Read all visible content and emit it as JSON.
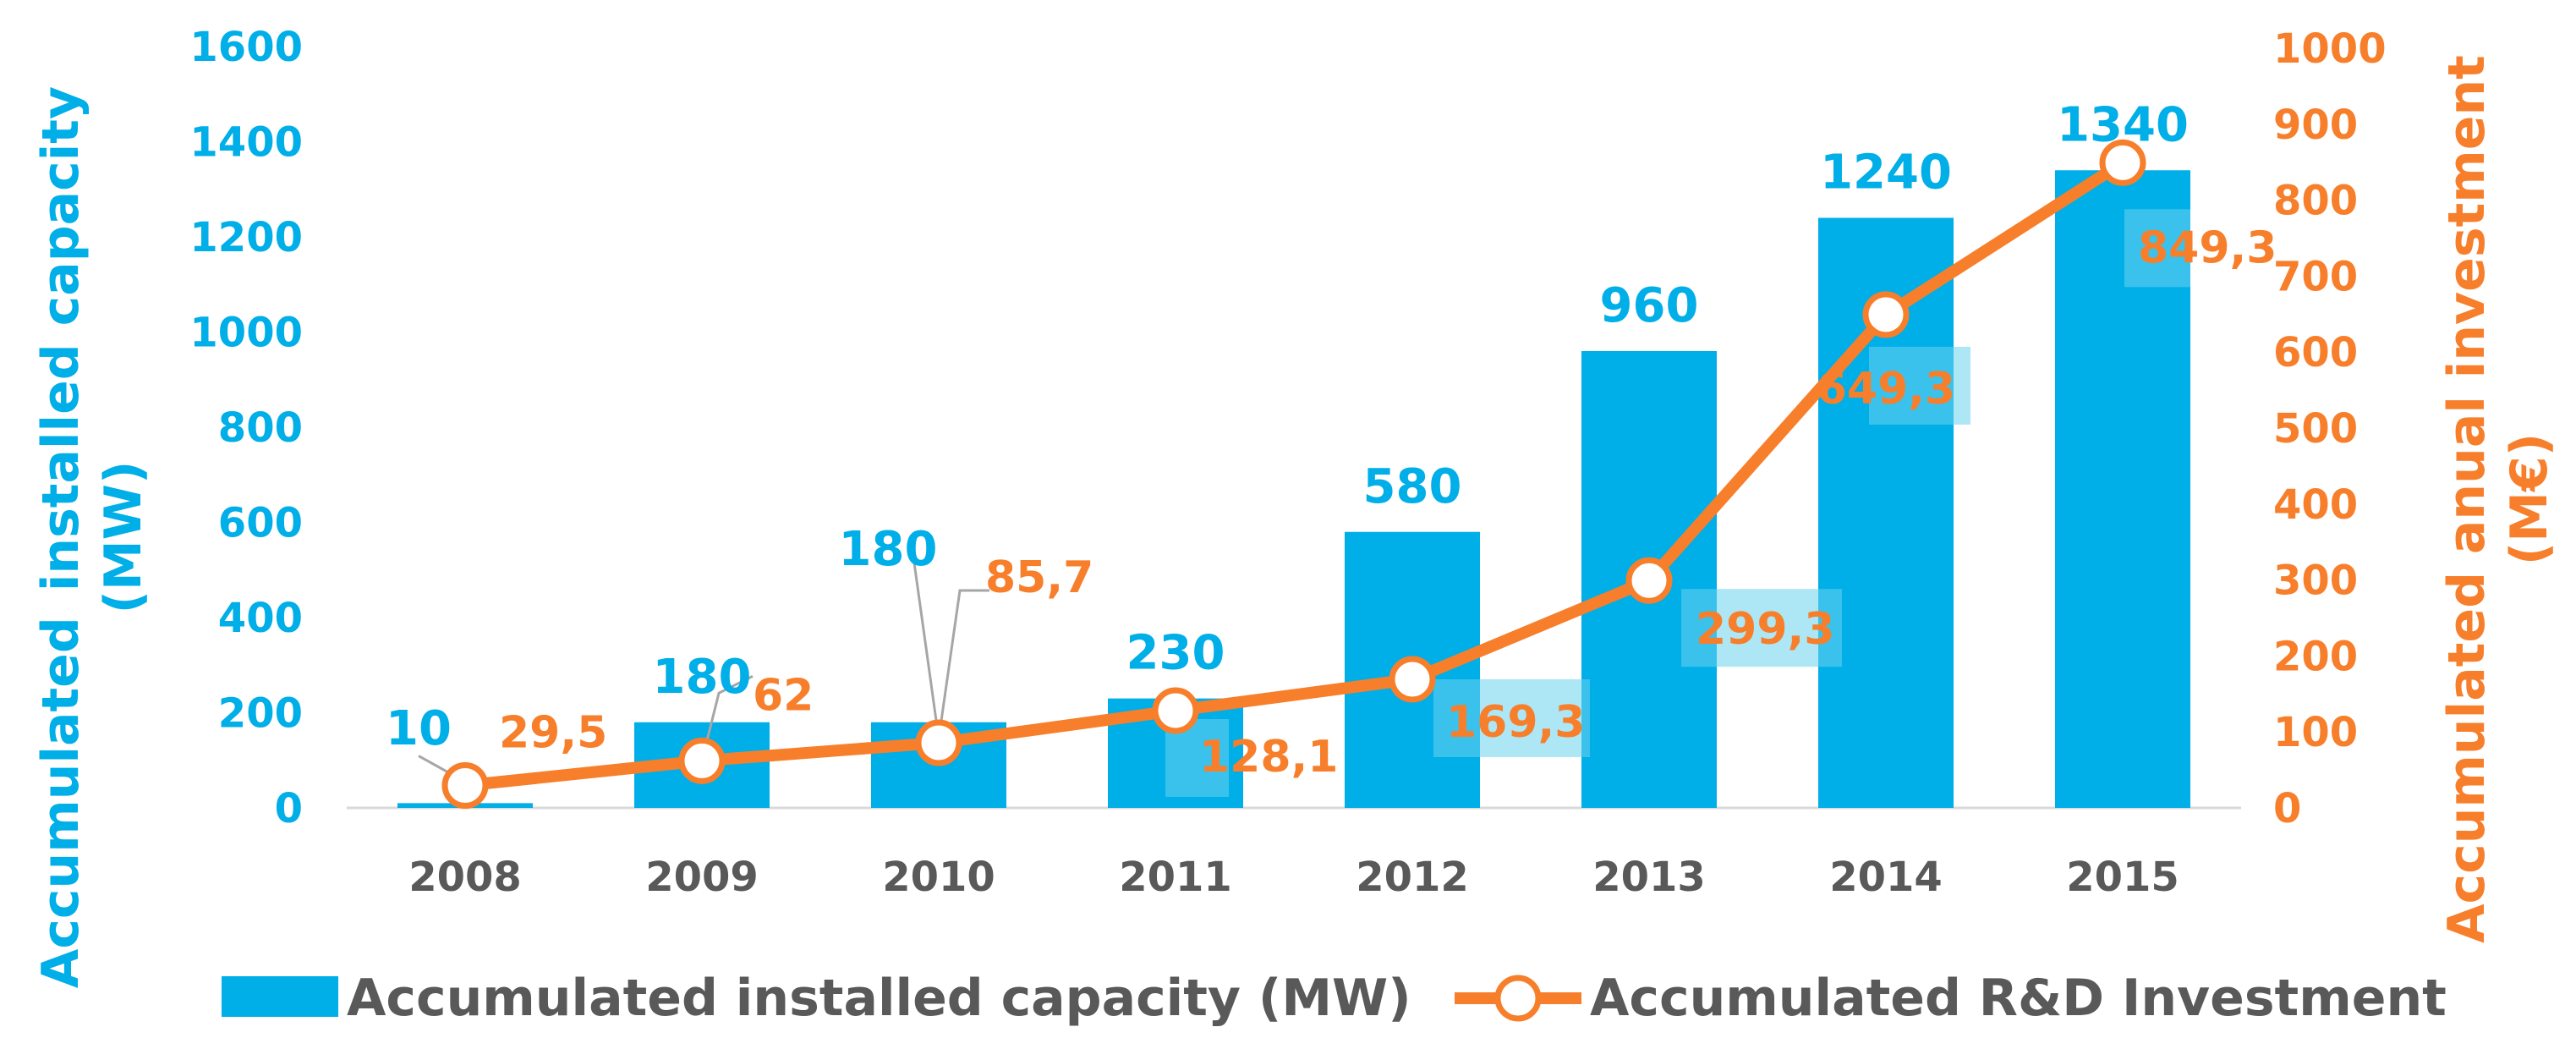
{
  "chart_data": {
    "type": "bar+line",
    "categories": [
      "2008",
      "2009",
      "2010",
      "2011",
      "2012",
      "2013",
      "2014",
      "2015"
    ],
    "series": [
      {
        "name": "Accumulated installed capacity (MW)",
        "type": "bar",
        "axis": "left",
        "color": "#00aee8",
        "values": [
          10,
          180,
          180,
          230,
          580,
          960,
          1240,
          1340
        ],
        "labels": [
          "10",
          "180",
          "180",
          "230",
          "580",
          "960",
          "1240",
          "1340"
        ]
      },
      {
        "name": "Accumulated R&D Investment",
        "type": "line",
        "axis": "right",
        "color": "#f77f2b",
        "values": [
          29.5,
          62,
          85.7,
          128.1,
          169.3,
          299.3,
          649.3,
          849.3
        ],
        "labels": [
          "29,5",
          "62",
          "85,7",
          "128,1",
          "169,3",
          "299,3",
          "649,3",
          "849,3"
        ]
      }
    ],
    "y_left": {
      "label_lines": [
        "Accumulated installed capacity",
        "(MW)"
      ],
      "range": [
        0,
        1600
      ],
      "ticks": [
        "0",
        "200",
        "400",
        "600",
        "800",
        "1000",
        "1200",
        "1400",
        "1600"
      ]
    },
    "y_right": {
      "label_lines": [
        "Accumulated anual investment",
        "(M€)"
      ],
      "range": [
        0,
        1000
      ],
      "ticks": [
        "0",
        "100",
        "200",
        "300",
        "400",
        "500",
        "600",
        "700",
        "800",
        "900",
        "1000"
      ]
    },
    "legend": {
      "position": "bottom",
      "items": [
        "Accumulated installed capacity (MW)",
        "Accumulated R&D Investment"
      ]
    }
  }
}
